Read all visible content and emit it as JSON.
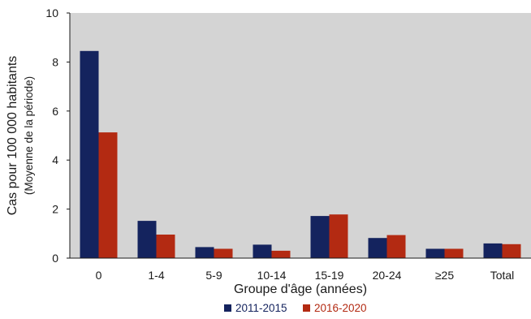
{
  "colors": {
    "plot_background": "#d4d4d4",
    "series_2011_2015": "#14235e",
    "series_2016_2020": "#b32a12",
    "axis": "#1a1a1a"
  },
  "chart_data": {
    "type": "bar",
    "title": "",
    "xlabel": "Groupe d'âge (années)",
    "ylabel": "Cas pour 100 000 habitants",
    "ylabel_sub": "(Moyenne de la période)",
    "ylim": [
      0,
      10
    ],
    "yticks": [
      "0",
      "2",
      "4",
      "6",
      "8",
      "10"
    ],
    "grid": false,
    "legend_position": "bottom",
    "categories": [
      "0",
      "1-4",
      "5-9",
      "10-14",
      "15-19",
      "20-24",
      "≥25",
      "Total"
    ],
    "series": [
      {
        "name": "2011-2015",
        "values": [
          8.45,
          1.52,
          0.45,
          0.55,
          1.72,
          0.82,
          0.38,
          0.6
        ]
      },
      {
        "name": "2016-2020",
        "values": [
          5.13,
          0.96,
          0.38,
          0.3,
          1.78,
          0.94,
          0.38,
          0.57
        ]
      }
    ]
  }
}
